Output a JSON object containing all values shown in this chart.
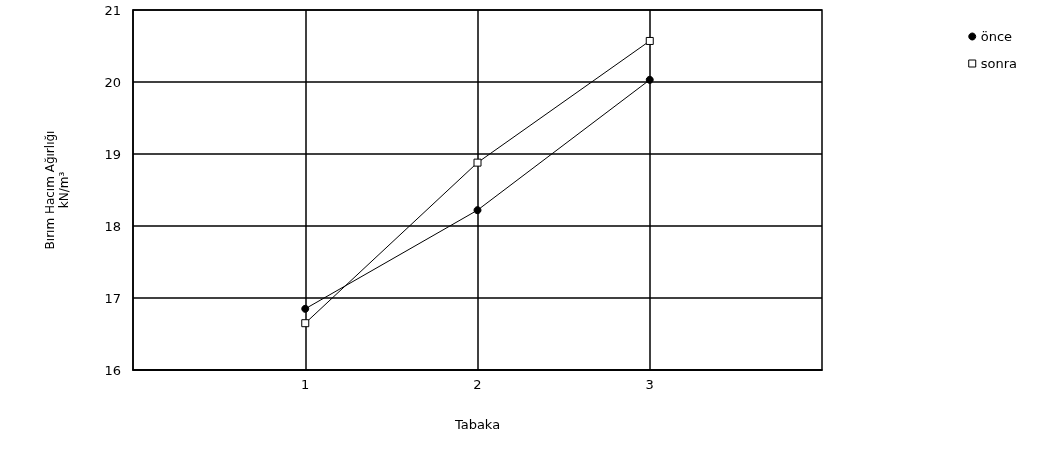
{
  "chart_data": {
    "type": "line",
    "xlabel": "Tabaka",
    "ylabel": "Bırım Hacım Ağırlığı\nkN/m³",
    "x": [
      1,
      2,
      3
    ],
    "xlim": [
      0,
      4
    ],
    "xticks": [
      1,
      2,
      3
    ],
    "ylim": [
      16,
      21
    ],
    "yticks": [
      16,
      17,
      18,
      19,
      20,
      21
    ],
    "series": [
      {
        "name": "önce",
        "color": "#000000",
        "marker": "circle",
        "values": [
          16.85,
          18.22,
          20.03
        ]
      },
      {
        "name": "sonra",
        "color": "#000000",
        "marker": "square",
        "values": [
          16.65,
          18.88,
          20.57
        ]
      }
    ],
    "grid": true,
    "legend": "top right",
    "line_style": "solid"
  }
}
